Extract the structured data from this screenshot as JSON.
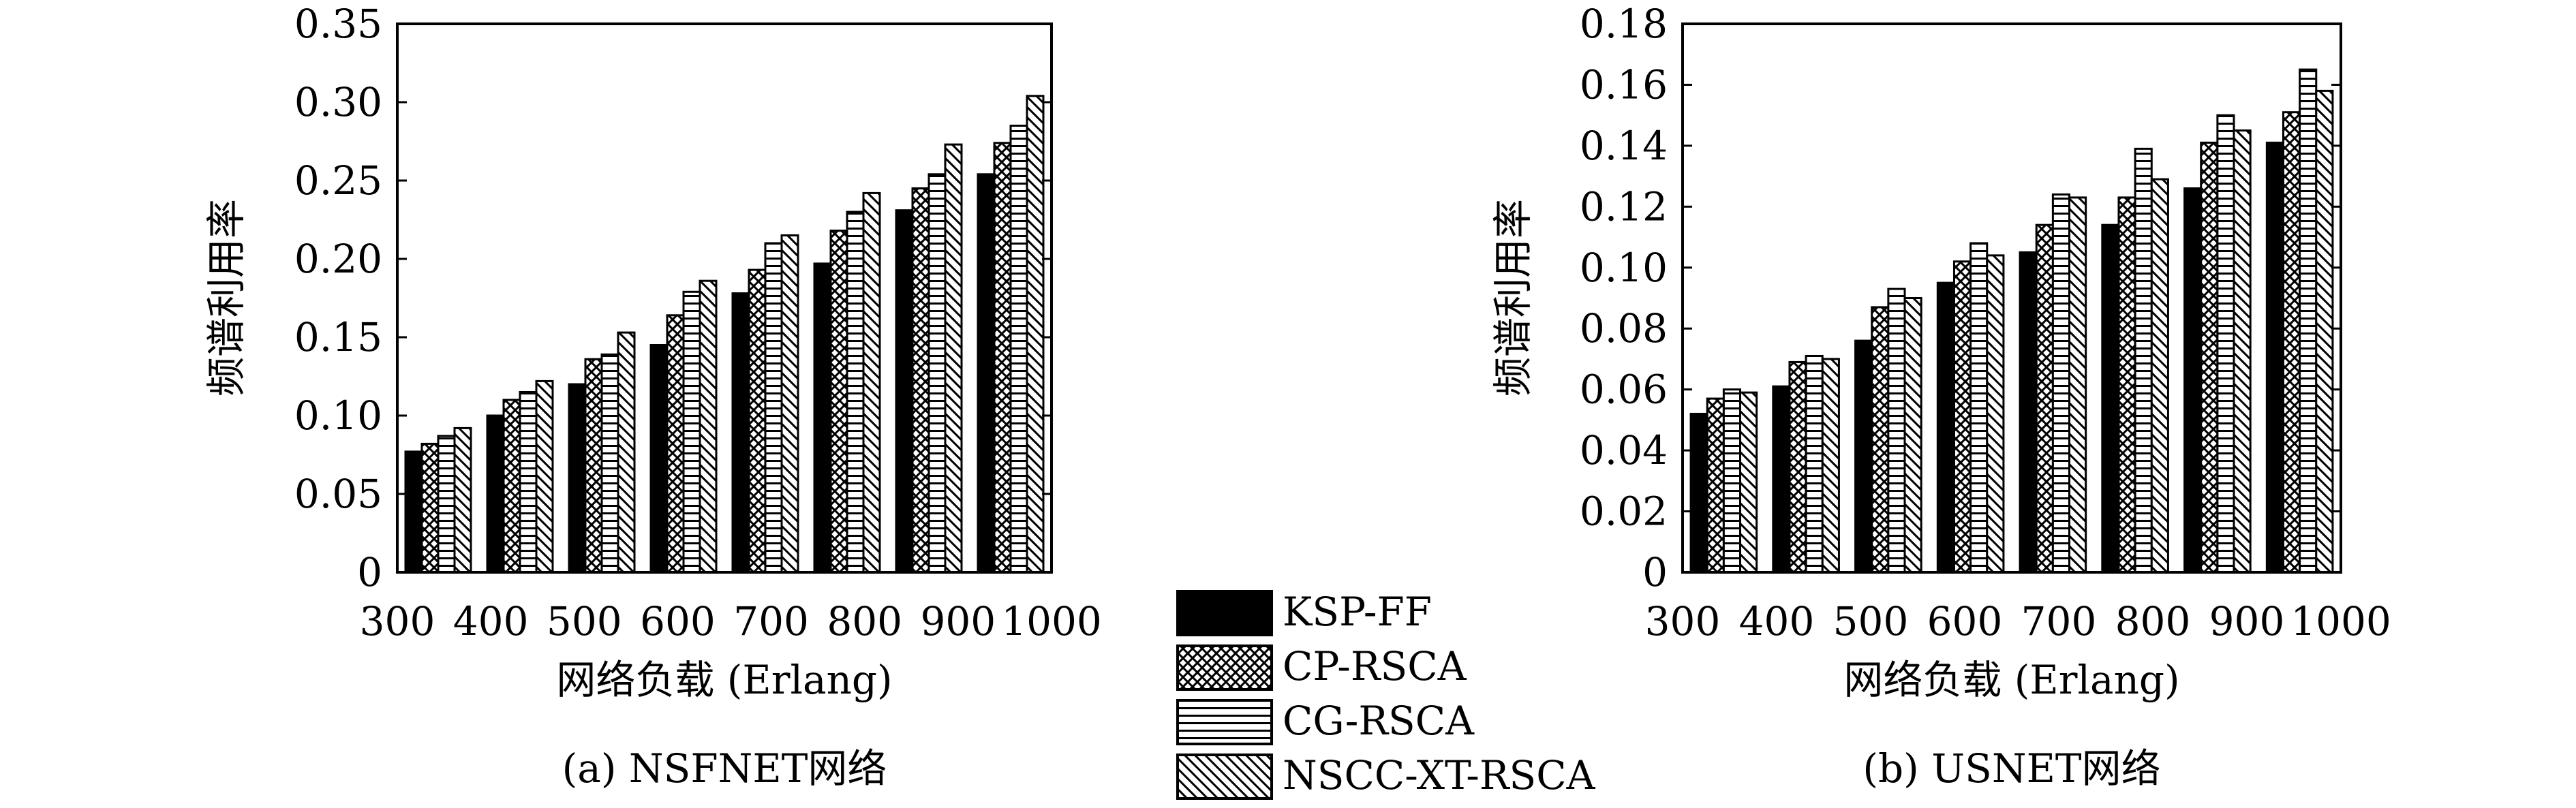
{
  "legend": {
    "items": [
      {
        "label": "KSP-FF",
        "pattern": "solid"
      },
      {
        "label": "CP-RSCA",
        "pattern": "crosshatch"
      },
      {
        "label": "CG-RSCA",
        "pattern": "horizontal"
      },
      {
        "label": "NSCC-XT-RSCA",
        "pattern": "diagonal"
      }
    ]
  },
  "chart_data": [
    {
      "type": "bar",
      "caption": "(a) NSFNET网络",
      "xlabel": "网络负载 (Erlang)",
      "ylabel": "频谱利用率",
      "categories": [
        "300",
        "400",
        "500",
        "600",
        "700",
        "800",
        "900",
        "1000"
      ],
      "ylim": [
        0,
        0.35
      ],
      "yticks": [
        "0",
        "0.05",
        "0.10",
        "0.15",
        "0.20",
        "0.25",
        "0.30",
        "0.35"
      ],
      "series": [
        {
          "name": "KSP-FF",
          "values": [
            0.077,
            0.1,
            0.12,
            0.145,
            0.178,
            0.197,
            0.231,
            0.254
          ]
        },
        {
          "name": "CP-RSCA",
          "values": [
            0.082,
            0.11,
            0.136,
            0.164,
            0.193,
            0.218,
            0.245,
            0.274
          ]
        },
        {
          "name": "CG-RSCA",
          "values": [
            0.087,
            0.115,
            0.139,
            0.179,
            0.21,
            0.23,
            0.254,
            0.285
          ]
        },
        {
          "name": "NSCC-XT-RSCA",
          "values": [
            0.092,
            0.122,
            0.153,
            0.186,
            0.215,
            0.242,
            0.273,
            0.304
          ]
        }
      ]
    },
    {
      "type": "bar",
      "caption": "(b) USNET网络",
      "xlabel": "网络负载 (Erlang)",
      "ylabel": "频谱利用率",
      "categories": [
        "300",
        "400",
        "500",
        "600",
        "700",
        "800",
        "900",
        "1000"
      ],
      "ylim": [
        0,
        0.18
      ],
      "yticks": [
        "0",
        "0.02",
        "0.04",
        "0.06",
        "0.08",
        "0.10",
        "0.12",
        "0.14",
        "0.16",
        "0.18"
      ],
      "series": [
        {
          "name": "KSP-FF",
          "values": [
            0.052,
            0.061,
            0.076,
            0.095,
            0.105,
            0.114,
            0.126,
            0.141
          ]
        },
        {
          "name": "CP-RSCA",
          "values": [
            0.057,
            0.069,
            0.087,
            0.102,
            0.114,
            0.123,
            0.141,
            0.151
          ]
        },
        {
          "name": "CG-RSCA",
          "values": [
            0.06,
            0.071,
            0.093,
            0.108,
            0.124,
            0.139,
            0.15,
            0.165
          ]
        },
        {
          "name": "NSCC-XT-RSCA",
          "values": [
            0.059,
            0.07,
            0.09,
            0.104,
            0.123,
            0.129,
            0.145,
            0.158
          ]
        }
      ]
    }
  ]
}
